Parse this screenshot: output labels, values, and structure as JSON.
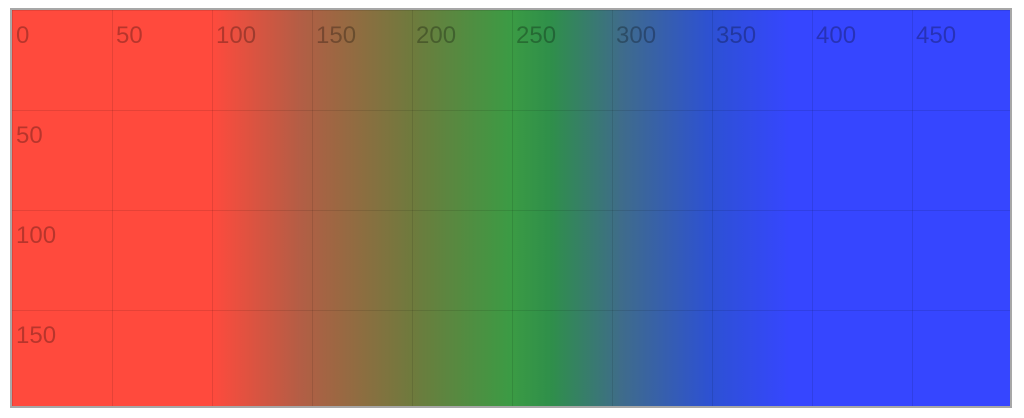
{
  "canvas": {
    "x_labels": [
      "0",
      "50",
      "100",
      "150",
      "200",
      "250",
      "300",
      "350",
      "400",
      "450"
    ],
    "y_labels": [
      "50",
      "100",
      "150"
    ]
  }
}
